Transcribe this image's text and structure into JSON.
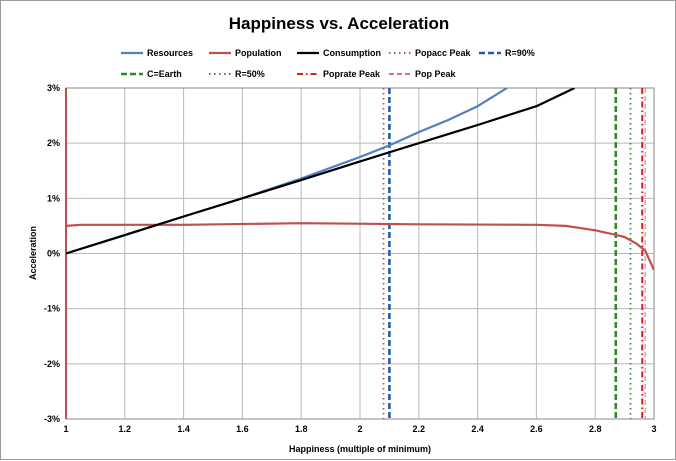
{
  "chart_data": {
    "type": "line",
    "title": "Happiness vs. Acceleration",
    "xlabel": "Happiness (multiple of minimum)",
    "ylabel": "Acceleration",
    "xlim": [
      1,
      3
    ],
    "ylim": [
      -3,
      3
    ],
    "x_ticks": [
      1,
      1.2,
      1.4,
      1.6,
      1.8,
      2,
      2.2,
      2.4,
      2.6,
      2.8,
      3
    ],
    "x_tick_labels": [
      "1",
      "1.2",
      "1.4",
      "1.6",
      "1.8",
      "2",
      "2.2",
      "2.4",
      "2.6",
      "2.8",
      "3"
    ],
    "y_ticks": [
      3,
      2,
      1,
      0,
      -1,
      -2,
      -3
    ],
    "y_tick_labels": [
      "3%",
      "2%",
      "1%",
      "0%",
      "-1%",
      "-2%",
      "-3%"
    ],
    "y_unit": "%",
    "grid": true,
    "legend_position": "top",
    "series": [
      {
        "name": "Resources",
        "color": "#4f81bd",
        "style": "solid",
        "points": [
          [
            1,
            0
          ],
          [
            1.2,
            0.33
          ],
          [
            1.4,
            0.67
          ],
          [
            1.6,
            1.0
          ],
          [
            1.8,
            1.36
          ],
          [
            2,
            1.75
          ],
          [
            2.1,
            1.96
          ],
          [
            2.2,
            2.2
          ],
          [
            2.3,
            2.42
          ],
          [
            2.4,
            2.67
          ],
          [
            2.5,
            3.0
          ]
        ]
      },
      {
        "name": "Population",
        "color": "#c0504d",
        "style": "solid",
        "points": [
          [
            1,
            0.5
          ],
          [
            1.05,
            0.52
          ],
          [
            1.4,
            0.52
          ],
          [
            1.8,
            0.55
          ],
          [
            2.2,
            0.53
          ],
          [
            2.6,
            0.52
          ],
          [
            2.7,
            0.5
          ],
          [
            2.8,
            0.42
          ],
          [
            2.86,
            0.35
          ],
          [
            2.9,
            0.3
          ],
          [
            2.94,
            0.18
          ],
          [
            2.97,
            0.05
          ],
          [
            3,
            -0.3
          ]
        ]
      },
      {
        "name": "Consumption",
        "color": "#000000",
        "style": "solid",
        "points": [
          [
            1,
            0
          ],
          [
            1.4,
            0.67
          ],
          [
            1.8,
            1.33
          ],
          [
            2,
            1.67
          ],
          [
            2.2,
            2.0
          ],
          [
            2.4,
            2.33
          ],
          [
            2.6,
            2.67
          ],
          [
            2.73,
            3.0
          ]
        ]
      },
      {
        "name": "Popacc Peak",
        "color": "#c0504d",
        "style": "dotted",
        "vertical_at": 2.08
      },
      {
        "name": "R=90%",
        "color": "#1f5fb0",
        "style": "dashed",
        "vertical_at": 2.1
      },
      {
        "name": "C=Earth",
        "color": "#2e8b2e",
        "style": "dashed",
        "vertical_at": 2.87
      },
      {
        "name": "R=50%",
        "color": "#3a8a3a",
        "style": "dotted",
        "vertical_at": 2.92
      },
      {
        "name": "Poprate Peak",
        "color": "#d62020",
        "style": "dashdot",
        "vertical_at": 2.96
      },
      {
        "name": "Pop Peak",
        "color": "#e07070",
        "style": "thin-dash",
        "vertical_at": 2.97
      }
    ],
    "extra_vertical": {
      "color": "#c0504d",
      "at": 1
    }
  }
}
